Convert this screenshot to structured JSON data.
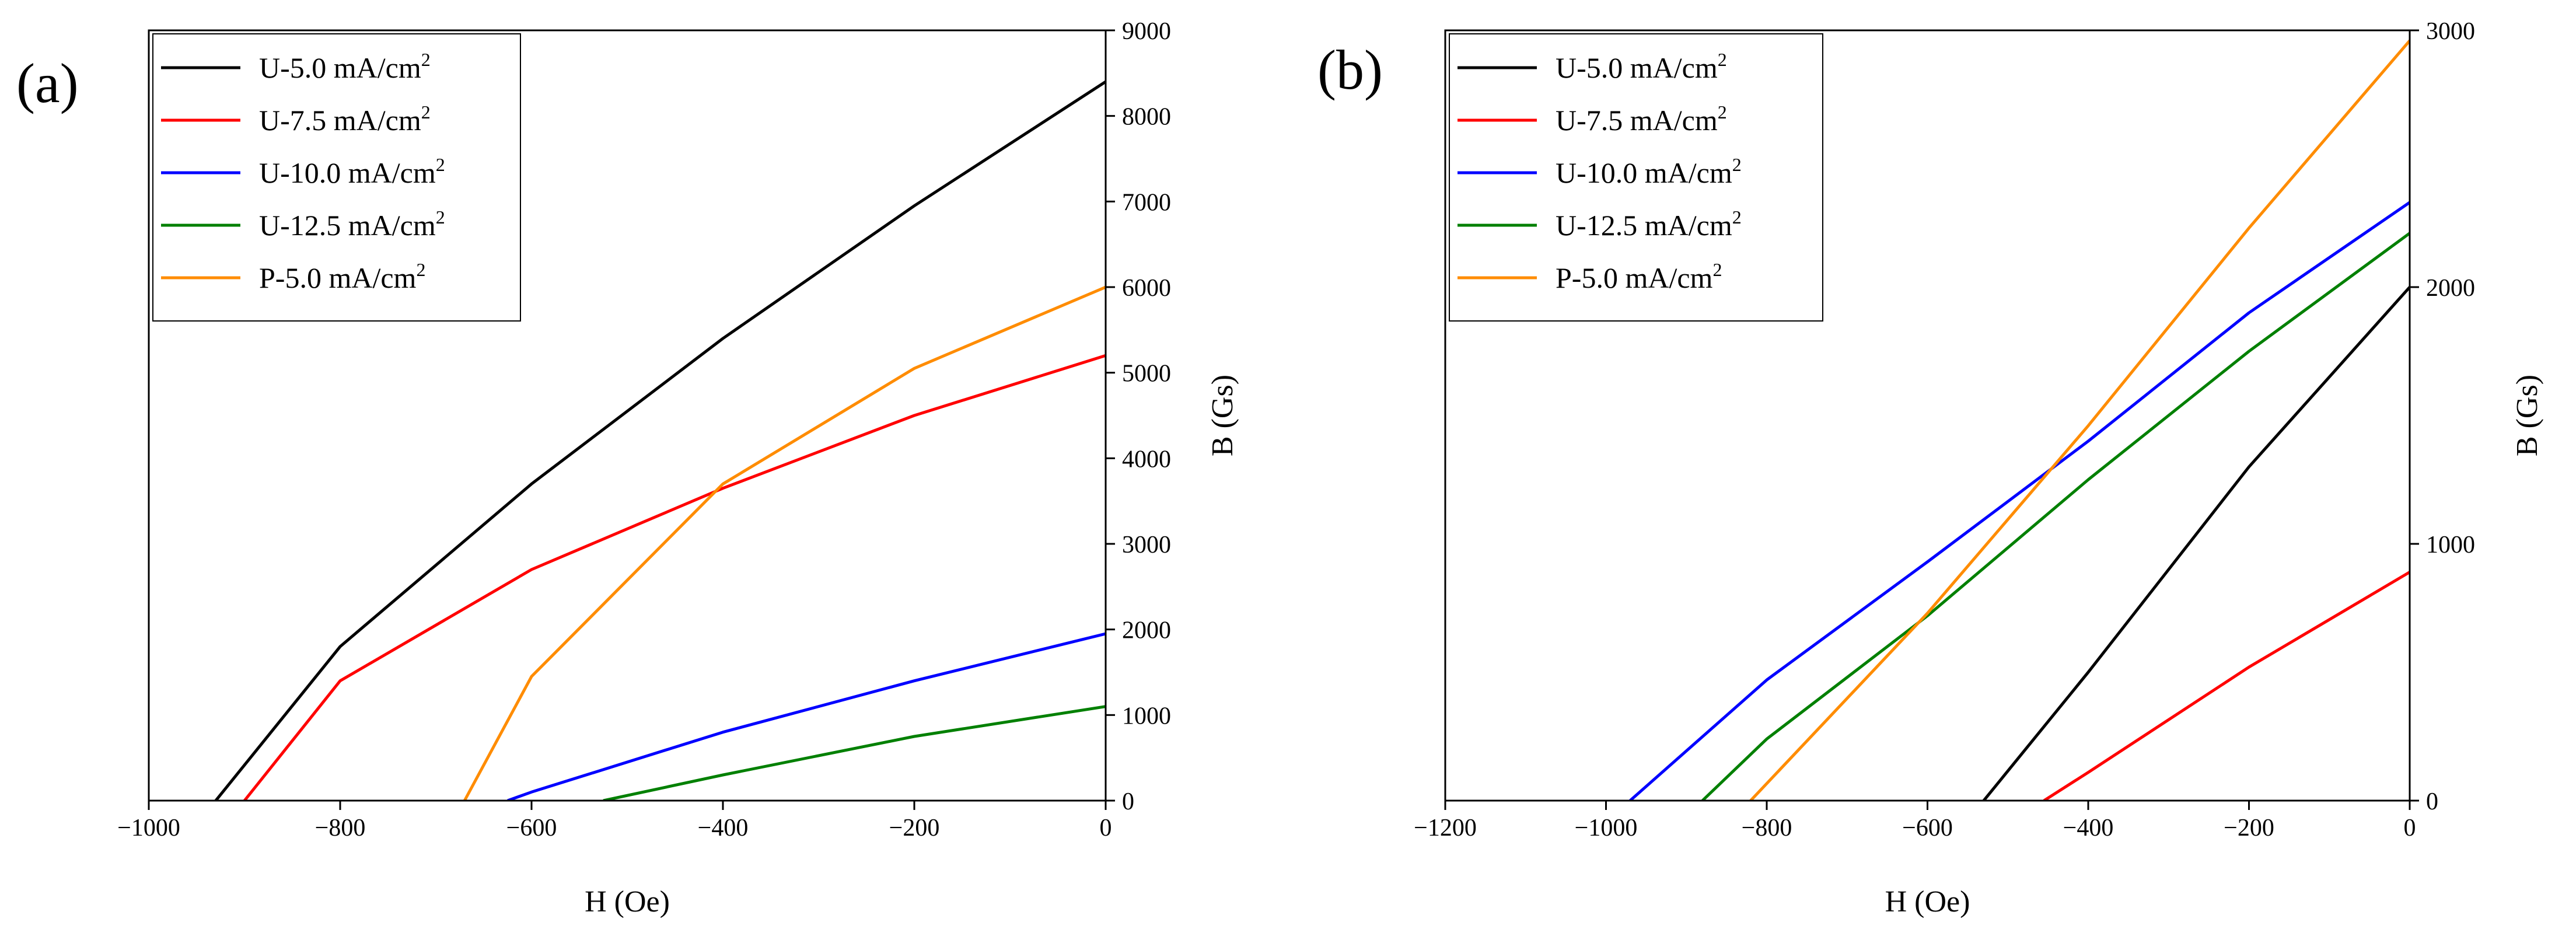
{
  "chart_data": [
    {
      "type": "line",
      "panel_label": "(a)",
      "xlabel": "H (Oe)",
      "ylabel": "B (Gs)",
      "xlim": [
        -1000,
        0
      ],
      "ylim": [
        0,
        9000
      ],
      "xticks": [
        -1000,
        -800,
        -600,
        -400,
        -200,
        0
      ],
      "yticks": [
        0,
        1000,
        2000,
        3000,
        4000,
        5000,
        6000,
        7000,
        8000,
        9000
      ],
      "xtick_labels": [
        "−1000",
        "−800",
        "−600",
        "−400",
        "−200",
        "0"
      ],
      "ytick_labels": [
        "0",
        "1000",
        "2000",
        "3000",
        "4000",
        "5000",
        "6000",
        "7000",
        "8000",
        "9000"
      ],
      "y_axis_side": "right",
      "legend_position": "top-left",
      "series": [
        {
          "name": "U-5.0 mA/cm",
          "sup": "2",
          "color": "#000000",
          "x": [
            -930,
            -800,
            -600,
            -400,
            -200,
            0
          ],
          "y": [
            0,
            1800,
            3700,
            5400,
            6950,
            8400
          ]
        },
        {
          "name": "U-7.5 mA/cm",
          "sup": "2",
          "color": "#ff0000",
          "x": [
            -900,
            -800,
            -600,
            -400,
            -200,
            0
          ],
          "y": [
            0,
            1400,
            2700,
            3650,
            4500,
            5200
          ]
        },
        {
          "name": "U-10.0 mA/cm",
          "sup": "2",
          "color": "#0000ff",
          "x": [
            -625,
            -600,
            -400,
            -200,
            0
          ],
          "y": [
            0,
            100,
            800,
            1400,
            1950
          ]
        },
        {
          "name": "U-12.5 mA/cm",
          "sup": "2",
          "color": "#008000",
          "x": [
            -525,
            -400,
            -200,
            0
          ],
          "y": [
            0,
            300,
            750,
            1100
          ]
        },
        {
          "name": "P-5.0 mA/cm",
          "sup": "2",
          "color": "#ff8c00",
          "x": [
            -670,
            -600,
            -400,
            -200,
            0
          ],
          "y": [
            0,
            1450,
            3700,
            5050,
            6000
          ]
        }
      ]
    },
    {
      "type": "line",
      "panel_label": "(b)",
      "xlabel": "H (Oe)",
      "ylabel": "B (Gs)",
      "xlim": [
        -1200,
        0
      ],
      "ylim": [
        0,
        3000
      ],
      "xticks": [
        -1200,
        -1000,
        -800,
        -600,
        -400,
        -200,
        0
      ],
      "yticks": [
        0,
        1000,
        2000,
        3000
      ],
      "xtick_labels": [
        "−1200",
        "−1000",
        "−800",
        "−600",
        "−400",
        "−200",
        "0"
      ],
      "ytick_labels": [
        "0",
        "1000",
        "2000",
        "3000"
      ],
      "y_axis_side": "right",
      "legend_position": "top-left",
      "series": [
        {
          "name": "U-5.0 mA/cm",
          "sup": "2",
          "color": "#000000",
          "x": [
            -530,
            -400,
            -200,
            0
          ],
          "y": [
            0,
            500,
            1300,
            2000
          ]
        },
        {
          "name": "U-7.5 mA/cm",
          "sup": "2",
          "color": "#ff0000",
          "x": [
            -455,
            -400,
            -200,
            0
          ],
          "y": [
            0,
            110,
            520,
            890
          ]
        },
        {
          "name": "U-10.0 mA/cm",
          "sup": "2",
          "color": "#0000ff",
          "x": [
            -970,
            -800,
            -600,
            -400,
            -200,
            0
          ],
          "y": [
            0,
            470,
            930,
            1400,
            1900,
            2330
          ]
        },
        {
          "name": "U-12.5 mA/cm",
          "sup": "2",
          "color": "#008000",
          "x": [
            -880,
            -800,
            -600,
            -400,
            -200,
            0
          ],
          "y": [
            0,
            240,
            720,
            1250,
            1750,
            2210
          ]
        },
        {
          "name": "P-5.0 mA/cm",
          "sup": "2",
          "color": "#ff8c00",
          "x": [
            -820,
            -600,
            -400,
            -200,
            0
          ],
          "y": [
            0,
            730,
            1460,
            2230,
            2960
          ]
        }
      ]
    }
  ]
}
